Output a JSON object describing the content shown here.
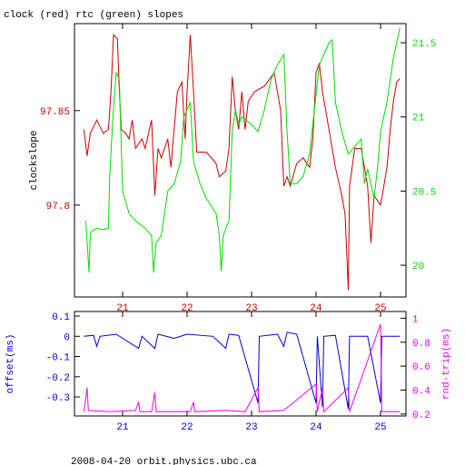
{
  "chart_data": [
    {
      "type": "line",
      "title": "clock (red) rtc (green) slopes",
      "ylabel": "clockslope",
      "xlim": [
        20.254,
        25.394
      ],
      "xticks": [
        21,
        22,
        23,
        24,
        25
      ],
      "ylim": [
        97.7514,
        97.896
      ],
      "yticks": [
        97.8,
        97.85
      ],
      "y2lim": [
        19.786,
        21.629
      ],
      "y2ticks": [
        20,
        20.5,
        21,
        21.5
      ],
      "series": [
        {
          "color": "#cc0000",
          "x": [
            20.4,
            20.45,
            20.5,
            20.6,
            20.7,
            20.78,
            20.82,
            20.86,
            20.92,
            20.95,
            20.98,
            21.05,
            21.1,
            21.15,
            21.2,
            21.3,
            21.35,
            21.45,
            21.5,
            21.55,
            21.6,
            21.7,
            21.75,
            21.85,
            21.92,
            21.97,
            22.0,
            22.05,
            22.1,
            22.15,
            22.3,
            22.45,
            22.5,
            22.6,
            22.65,
            22.7,
            22.75,
            22.8,
            22.85,
            22.9,
            22.95,
            23.05,
            23.2,
            23.35,
            23.45,
            23.5,
            23.55,
            23.6,
            23.7,
            23.8,
            23.9,
            23.95,
            24.0,
            24.05,
            24.1,
            24.2,
            24.3,
            24.4,
            24.45,
            24.5,
            24.52,
            24.6,
            24.7,
            24.8,
            24.85,
            24.9,
            25.0,
            25.05,
            25.1,
            25.15,
            25.2,
            25.25,
            25.3
          ],
          "values": [
            97.84,
            97.826,
            97.838,
            97.845,
            97.838,
            97.84,
            97.86,
            97.89,
            97.888,
            97.86,
            97.84,
            97.838,
            97.835,
            97.845,
            97.83,
            97.835,
            97.83,
            97.845,
            97.805,
            97.83,
            97.825,
            97.835,
            97.82,
            97.86,
            97.865,
            97.835,
            97.86,
            97.89,
            97.86,
            97.828,
            97.828,
            97.822,
            97.815,
            97.818,
            97.83,
            97.868,
            97.85,
            97.84,
            97.86,
            97.84,
            97.855,
            97.86,
            97.863,
            97.87,
            97.85,
            97.81,
            97.815,
            97.81,
            97.822,
            97.825,
            97.82,
            97.835,
            97.87,
            97.875,
            97.86,
            97.84,
            97.82,
            97.805,
            97.795,
            97.755,
            97.81,
            97.83,
            97.83,
            97.81,
            97.78,
            97.805,
            97.8,
            97.81,
            97.82,
            97.84,
            97.855,
            97.865,
            97.867
          ]
        },
        {
          "color": "#00dd00",
          "axis": "y2",
          "x": [
            20.43,
            20.48,
            20.5,
            20.6,
            20.7,
            20.78,
            20.8,
            20.85,
            20.9,
            20.95,
            21.0,
            21.1,
            21.2,
            21.35,
            21.45,
            21.48,
            21.52,
            21.6,
            21.7,
            21.8,
            21.9,
            21.95,
            22.0,
            22.05,
            22.1,
            22.2,
            22.3,
            22.45,
            22.5,
            22.53,
            22.56,
            22.65,
            22.7,
            22.75,
            22.8,
            22.85,
            23.0,
            23.1,
            23.2,
            23.3,
            23.4,
            23.5,
            23.55,
            23.6,
            23.7,
            23.8,
            23.9,
            24.0,
            24.05,
            24.1,
            24.2,
            24.25,
            24.3,
            24.4,
            24.5,
            24.6,
            24.7,
            24.75,
            24.8,
            24.9,
            24.95,
            25.0,
            25.1,
            25.2,
            25.3
          ],
          "values": [
            20.3,
            19.95,
            20.22,
            20.25,
            20.24,
            20.25,
            20.6,
            21.0,
            21.3,
            21.25,
            20.5,
            20.35,
            20.3,
            20.25,
            20.2,
            19.95,
            20.15,
            20.2,
            20.5,
            20.55,
            20.7,
            21.0,
            21.05,
            21.1,
            20.7,
            20.55,
            20.45,
            20.35,
            20.2,
            19.96,
            20.2,
            20.3,
            20.9,
            21.05,
            20.95,
            21.0,
            20.95,
            20.9,
            21.05,
            21.25,
            21.35,
            21.42,
            20.9,
            20.55,
            20.55,
            20.6,
            20.75,
            21.15,
            21.35,
            21.4,
            21.5,
            21.52,
            21.1,
            20.9,
            20.75,
            20.8,
            20.85,
            20.55,
            20.65,
            20.45,
            20.65,
            20.9,
            21.1,
            21.4,
            21.6
          ]
        }
      ]
    },
    {
      "type": "line",
      "ylabel": "offset(ms)",
      "y2label": "rnd-trip(ms)",
      "xlim": [
        20.254,
        25.394
      ],
      "xticks": [
        21,
        22,
        23,
        24,
        25
      ],
      "ylim": [
        -0.394,
        0.1225
      ],
      "yticks": [
        -0.3,
        -0.2,
        -0.1,
        0,
        0.1
      ],
      "y2lim": [
        0.184,
        1.056
      ],
      "y2ticks": [
        0.2,
        0.4,
        0.6,
        0.8,
        1
      ],
      "series": [
        {
          "color": "#0000cc",
          "x": [
            20.4,
            20.55,
            20.6,
            20.65,
            20.9,
            21.25,
            21.3,
            21.5,
            21.55,
            21.8,
            22.0,
            22.4,
            22.6,
            22.65,
            22.8,
            23.1,
            23.12,
            23.4,
            23.5,
            23.55,
            23.7,
            24.0,
            24.02,
            24.1,
            24.12,
            24.3,
            24.5,
            24.52,
            24.8,
            25.0,
            25.02,
            25.3
          ],
          "values": [
            0,
            0.005,
            -0.05,
            0,
            0.01,
            -0.06,
            0,
            -0.06,
            0.01,
            -0.01,
            0.01,
            0,
            -0.06,
            0.01,
            0.005,
            -0.33,
            0,
            0.01,
            -0.05,
            0.02,
            0.01,
            -0.33,
            0,
            -0.35,
            0,
            0.005,
            -0.36,
            0,
            0,
            -0.33,
            0,
            0
          ]
        },
        {
          "color": "#ee00ee",
          "axis": "y2",
          "x": [
            20.4,
            20.45,
            20.47,
            20.8,
            21.2,
            21.25,
            21.27,
            21.45,
            21.5,
            21.52,
            22.05,
            22.1,
            22.12,
            22.6,
            22.9,
            23.1,
            23.12,
            23.5,
            24.0,
            24.02,
            24.1,
            24.12,
            24.5,
            24.52,
            25.0,
            25.02,
            25.3
          ],
          "values": [
            0.22,
            0.42,
            0.23,
            0.22,
            0.23,
            0.3,
            0.22,
            0.22,
            0.38,
            0.22,
            0.22,
            0.3,
            0.22,
            0.23,
            0.22,
            0.42,
            0.22,
            0.23,
            0.45,
            0.22,
            0.42,
            0.22,
            0.42,
            0.22,
            0.95,
            0.22,
            0.22
          ]
        }
      ]
    }
  ],
  "footer": "2008-04-20 orbit.physics.ubc.ca"
}
